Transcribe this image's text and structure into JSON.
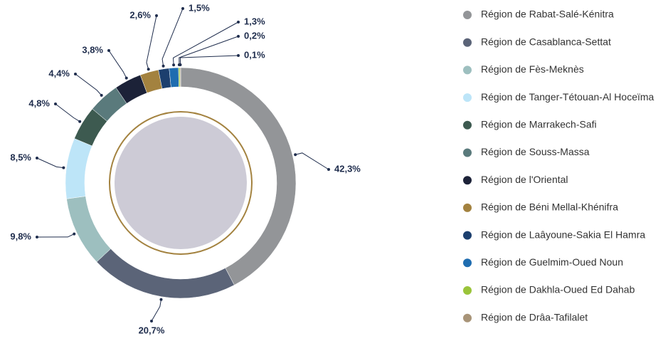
{
  "chart_data": {
    "type": "donut",
    "categories": [
      "Région de Rabat-Salé-Kénitra",
      "Région de Casablanca-Settat",
      "Région de Fès-Meknès",
      "Région de Tanger-Tétouan-Al Hoceïma",
      "Région de Marrakech-Safi",
      "Région de Souss-Massa",
      "Région de l'Oriental",
      "Région de Béni Mellal-Khénifra",
      "Région de Laâyoune-Sakia El Hamra",
      "Région de Guelmim-Oued Noun",
      "Région de Dakhla-Oued Ed Dahab",
      "Région de Drâa-Tafilalet"
    ],
    "values": [
      42.3,
      20.7,
      9.8,
      8.5,
      4.8,
      4.4,
      3.8,
      2.6,
      1.5,
      1.3,
      0.2,
      0.1
    ],
    "value_labels": [
      "42,3%",
      "20,7%",
      "9,8%",
      "8,5%",
      "4,8%",
      "4,4%",
      "3,8%",
      "2,6%",
      "1,5%",
      "1,3%",
      "0,2%",
      "0,1%"
    ],
    "colors": [
      "#939598",
      "#5b6478",
      "#9dbfbf",
      "#bde5f8",
      "#3d5a50",
      "#5a7a7c",
      "#1c2238",
      "#a3823f",
      "#1c3f6e",
      "#1f6db0",
      "#9ac43a",
      "#a89478"
    ]
  }
}
